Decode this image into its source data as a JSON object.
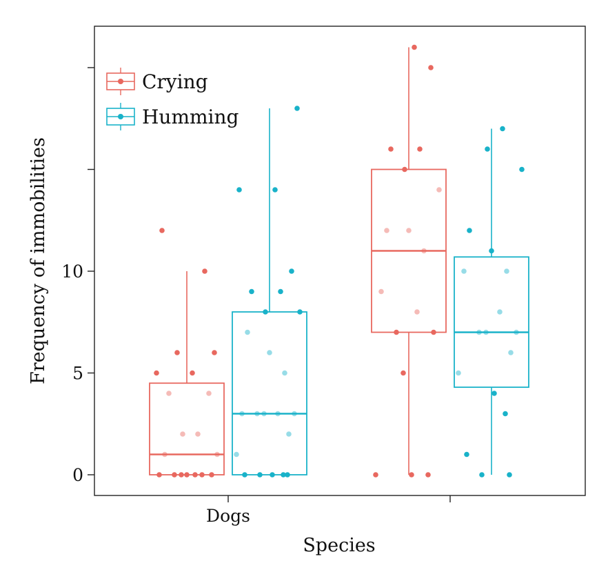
{
  "chart_data": {
    "type": "box",
    "xlabel": "Species",
    "ylabel": "Frequency of immobilities",
    "categories": [
      "Dogs",
      ""
    ],
    "ylim": [
      -1,
      22.5
    ],
    "yticks": [
      0,
      5,
      10,
      15,
      20
    ],
    "ytick_labels": [
      "0",
      "5",
      "10",
      "",
      ""
    ],
    "grid": false,
    "legend_position": "top-left",
    "series": [
      {
        "name": "Crying",
        "color": "#e8685f",
        "boxes": [
          {
            "category": "Dogs",
            "whisker_low": 0,
            "q1": 0,
            "median": 1,
            "q3": 4.5,
            "whisker_high": 10,
            "points": [
              12,
              10,
              6,
              6,
              5,
              5,
              4,
              4,
              2,
              2,
              1,
              1,
              0,
              0,
              0,
              0,
              0,
              0,
              0
            ]
          },
          {
            "category": "",
            "whisker_low": 0,
            "q1": 7,
            "median": 11,
            "q3": 15,
            "whisker_high": 21,
            "points": [
              21,
              20,
              16,
              16,
              15,
              14,
              12,
              12,
              11,
              9,
              8,
              7,
              7,
              5,
              0,
              0,
              0
            ]
          }
        ]
      },
      {
        "name": "Humming",
        "color": "#19b2c9",
        "boxes": [
          {
            "category": "Dogs",
            "whisker_low": 0,
            "q1": 0,
            "median": 3,
            "q3": 8,
            "whisker_high": 18,
            "points": [
              18,
              14,
              14,
              10,
              9,
              9,
              8,
              8,
              7,
              6,
              5,
              3,
              3,
              3,
              3,
              3,
              2,
              1,
              0,
              0,
              0,
              0,
              0
            ]
          },
          {
            "category": "",
            "whisker_low": 0,
            "q1": 4.3,
            "median": 7,
            "q3": 10.7,
            "whisker_high": 17,
            "points": [
              17,
              16,
              15,
              12,
              11,
              10,
              10,
              8,
              7,
              7,
              7,
              6,
              5,
              4,
              3,
              1,
              0,
              0
            ]
          }
        ]
      }
    ]
  }
}
